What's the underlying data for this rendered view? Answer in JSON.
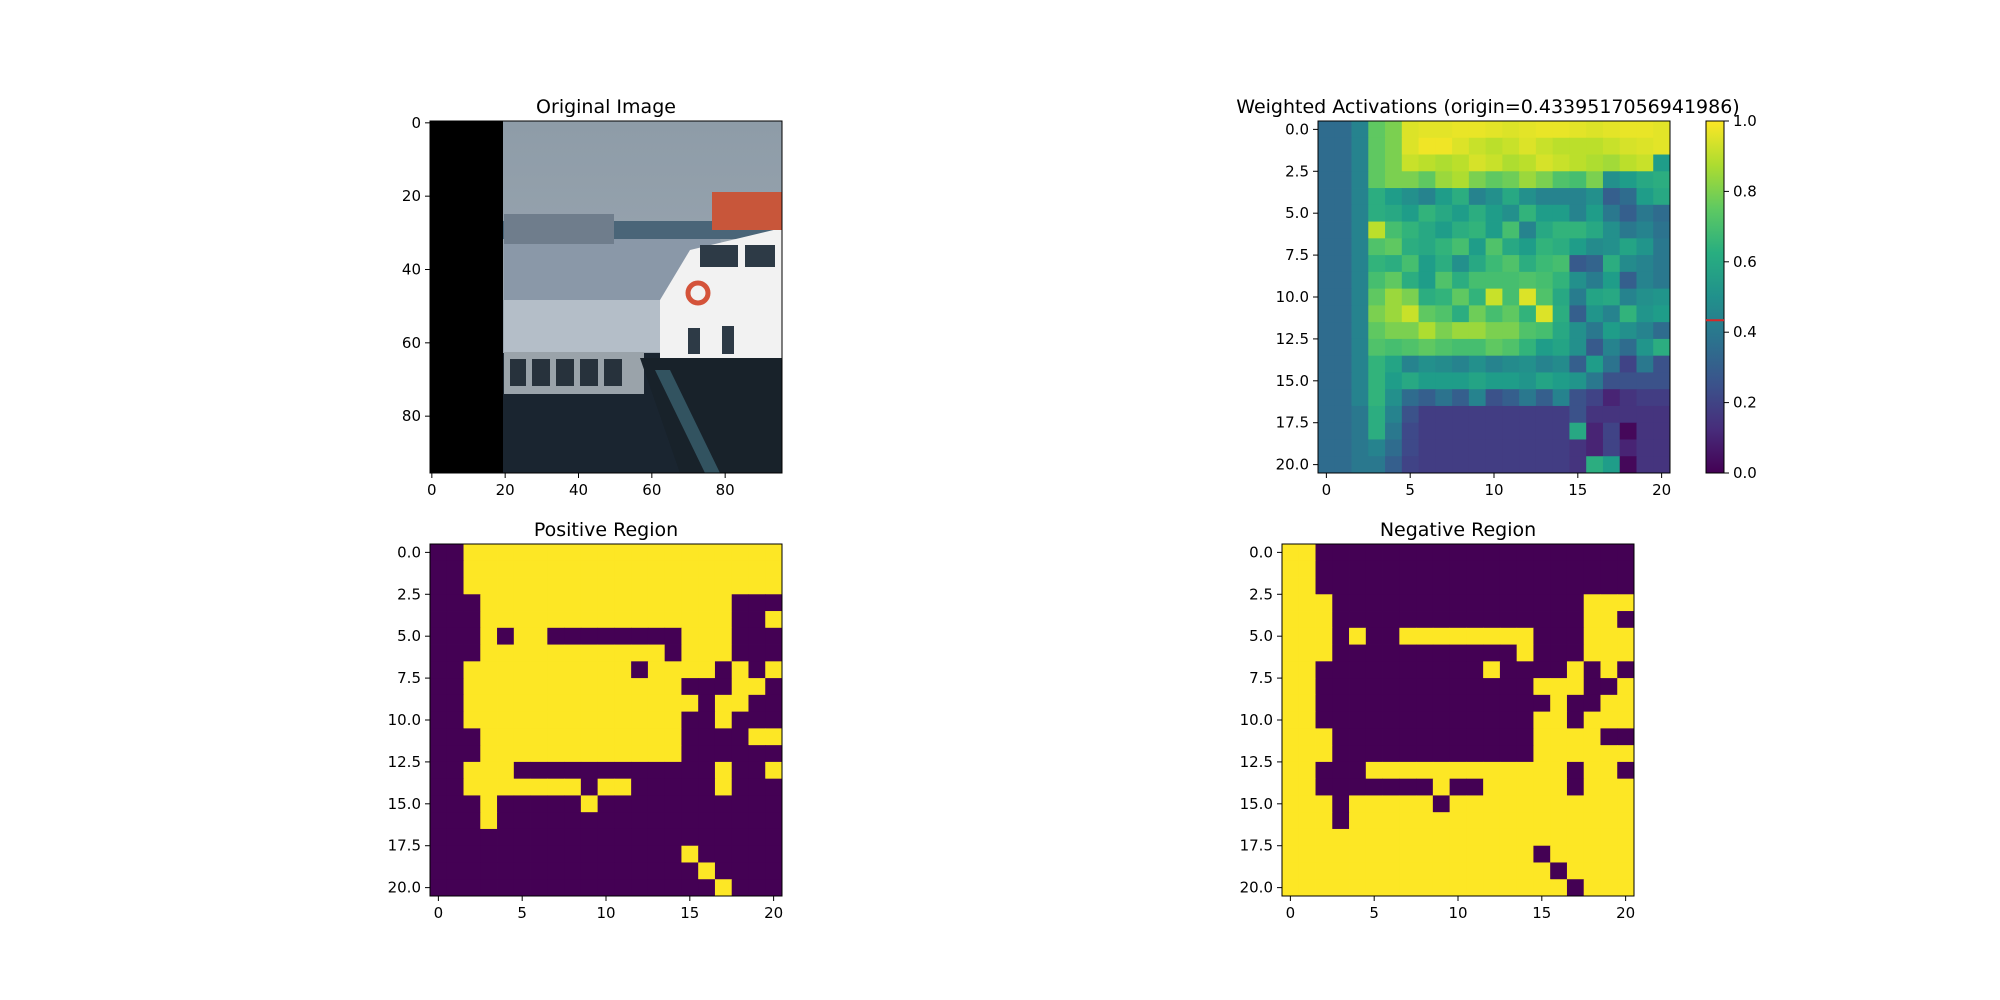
{
  "chart_data": [
    {
      "type": "image",
      "title": "Original Image",
      "xticks": [
        "0",
        "20",
        "40",
        "60",
        "80"
      ],
      "yticks": [
        "0",
        "20",
        "40",
        "60",
        "80"
      ],
      "xlim": [
        -0.5,
        95.5
      ],
      "ylim": [
        95.5,
        -0.5
      ],
      "content": "photograph of boats in a harbor; left ~20 columns masked black"
    },
    {
      "type": "heatmap",
      "title": "Weighted Activations (origin=0.4339517056941986)",
      "colormap": "viridis",
      "xticks": [
        "0",
        "5",
        "10",
        "15",
        "20"
      ],
      "yticks": [
        "0.0",
        "2.5",
        "5.0",
        "7.5",
        "10.0",
        "12.5",
        "15.0",
        "17.5",
        "20.0"
      ],
      "xlim": [
        -0.5,
        20.5
      ],
      "ylim": [
        20.5,
        -0.5
      ],
      "colorbar": {
        "range": [
          0,
          1
        ],
        "ticks": [
          "0.0",
          "0.2",
          "0.4",
          "0.6",
          "0.8",
          "1.0"
        ],
        "marker": 0.434,
        "marker_color": "#d62728"
      },
      "values": [
        [
          0.35,
          0.35,
          0.45,
          0.75,
          0.8,
          0.95,
          0.96,
          0.96,
          0.97,
          0.97,
          0.96,
          0.95,
          0.96,
          0.97,
          0.97,
          0.96,
          0.95,
          0.96,
          0.97,
          0.97,
          0.96
        ],
        [
          0.35,
          0.35,
          0.45,
          0.75,
          0.8,
          0.95,
          0.98,
          0.98,
          0.95,
          0.92,
          0.9,
          0.92,
          0.95,
          0.92,
          0.9,
          0.9,
          0.9,
          0.92,
          0.94,
          0.95,
          0.96
        ],
        [
          0.35,
          0.35,
          0.45,
          0.75,
          0.8,
          0.92,
          0.9,
          0.88,
          0.9,
          0.94,
          0.92,
          0.88,
          0.9,
          0.94,
          0.92,
          0.9,
          0.88,
          0.86,
          0.9,
          0.92,
          0.55
        ],
        [
          0.35,
          0.35,
          0.45,
          0.75,
          0.8,
          0.8,
          0.75,
          0.85,
          0.88,
          0.8,
          0.75,
          0.78,
          0.85,
          0.8,
          0.72,
          0.7,
          0.8,
          0.5,
          0.55,
          0.6,
          0.62
        ],
        [
          0.35,
          0.35,
          0.45,
          0.62,
          0.55,
          0.5,
          0.45,
          0.55,
          0.62,
          0.45,
          0.5,
          0.6,
          0.5,
          0.45,
          0.45,
          0.45,
          0.5,
          0.3,
          0.35,
          0.55,
          0.6
        ],
        [
          0.35,
          0.35,
          0.45,
          0.62,
          0.6,
          0.55,
          0.65,
          0.6,
          0.55,
          0.62,
          0.55,
          0.5,
          0.65,
          0.55,
          0.55,
          0.45,
          0.55,
          0.4,
          0.3,
          0.4,
          0.35
        ],
        [
          0.35,
          0.35,
          0.45,
          0.9,
          0.7,
          0.65,
          0.6,
          0.55,
          0.62,
          0.65,
          0.55,
          0.7,
          0.45,
          0.6,
          0.65,
          0.65,
          0.6,
          0.5,
          0.4,
          0.45,
          0.38
        ],
        [
          0.35,
          0.35,
          0.45,
          0.72,
          0.75,
          0.62,
          0.6,
          0.65,
          0.7,
          0.55,
          0.72,
          0.6,
          0.55,
          0.65,
          0.62,
          0.55,
          0.48,
          0.5,
          0.58,
          0.52,
          0.4
        ],
        [
          0.35,
          0.35,
          0.45,
          0.65,
          0.62,
          0.7,
          0.55,
          0.62,
          0.5,
          0.6,
          0.68,
          0.72,
          0.62,
          0.68,
          0.7,
          0.28,
          0.32,
          0.62,
          0.48,
          0.45,
          0.4
        ],
        [
          0.35,
          0.35,
          0.45,
          0.7,
          0.75,
          0.62,
          0.55,
          0.72,
          0.62,
          0.7,
          0.7,
          0.7,
          0.72,
          0.7,
          0.65,
          0.5,
          0.42,
          0.55,
          0.3,
          0.45,
          0.4
        ],
        [
          0.35,
          0.35,
          0.45,
          0.75,
          0.85,
          0.8,
          0.62,
          0.65,
          0.75,
          0.65,
          0.92,
          0.7,
          0.95,
          0.72,
          0.6,
          0.42,
          0.58,
          0.6,
          0.45,
          0.5,
          0.52
        ],
        [
          0.35,
          0.35,
          0.45,
          0.8,
          0.85,
          0.92,
          0.75,
          0.72,
          0.62,
          0.78,
          0.7,
          0.75,
          0.65,
          0.95,
          0.62,
          0.3,
          0.52,
          0.45,
          0.65,
          0.52,
          0.55
        ],
        [
          0.35,
          0.35,
          0.45,
          0.75,
          0.8,
          0.8,
          0.88,
          0.8,
          0.85,
          0.85,
          0.8,
          0.8,
          0.72,
          0.7,
          0.6,
          0.5,
          0.4,
          0.55,
          0.5,
          0.45,
          0.35
        ],
        [
          0.35,
          0.35,
          0.45,
          0.72,
          0.7,
          0.72,
          0.75,
          0.72,
          0.7,
          0.7,
          0.75,
          0.72,
          0.65,
          0.55,
          0.58,
          0.5,
          0.28,
          0.45,
          0.35,
          0.52,
          0.62
        ],
        [
          0.35,
          0.35,
          0.45,
          0.65,
          0.58,
          0.45,
          0.5,
          0.48,
          0.45,
          0.5,
          0.45,
          0.48,
          0.5,
          0.45,
          0.48,
          0.3,
          0.55,
          0.38,
          0.2,
          0.4,
          0.25
        ],
        [
          0.35,
          0.35,
          0.45,
          0.65,
          0.55,
          0.6,
          0.55,
          0.55,
          0.55,
          0.58,
          0.55,
          0.55,
          0.52,
          0.58,
          0.55,
          0.52,
          0.4,
          0.25,
          0.25,
          0.25,
          0.25
        ],
        [
          0.35,
          0.35,
          0.45,
          0.65,
          0.5,
          0.35,
          0.3,
          0.38,
          0.3,
          0.45,
          0.25,
          0.3,
          0.4,
          0.3,
          0.45,
          0.25,
          0.2,
          0.1,
          0.15,
          0.18,
          0.18
        ],
        [
          0.35,
          0.35,
          0.4,
          0.62,
          0.45,
          0.25,
          0.18,
          0.18,
          0.18,
          0.18,
          0.18,
          0.18,
          0.18,
          0.18,
          0.18,
          0.25,
          0.15,
          0.15,
          0.15,
          0.15,
          0.15
        ],
        [
          0.35,
          0.35,
          0.4,
          0.62,
          0.4,
          0.22,
          0.18,
          0.18,
          0.18,
          0.18,
          0.18,
          0.18,
          0.18,
          0.18,
          0.18,
          0.6,
          0.1,
          0.2,
          0.02,
          0.15,
          0.15
        ],
        [
          0.35,
          0.35,
          0.4,
          0.45,
          0.35,
          0.22,
          0.18,
          0.18,
          0.18,
          0.18,
          0.18,
          0.18,
          0.18,
          0.18,
          0.18,
          0.15,
          0.1,
          0.2,
          0.1,
          0.15,
          0.15
        ],
        [
          0.35,
          0.35,
          0.4,
          0.4,
          0.3,
          0.2,
          0.18,
          0.18,
          0.18,
          0.18,
          0.18,
          0.18,
          0.18,
          0.18,
          0.18,
          0.15,
          0.62,
          0.55,
          0.02,
          0.15,
          0.15
        ]
      ]
    },
    {
      "type": "heatmap",
      "title": "Positive Region",
      "colormap": "viridis-binary",
      "xticks": [
        "0",
        "5",
        "10",
        "15",
        "20"
      ],
      "yticks": [
        "0.0",
        "2.5",
        "5.0",
        "7.5",
        "10.0",
        "12.5",
        "15.0",
        "17.5",
        "20.0"
      ],
      "xlim": [
        -0.5,
        20.5
      ],
      "ylim": [
        20.5,
        -0.5
      ],
      "rows": [
        "001111111111111111111",
        "001111111111111111111",
        "001111111111111111111",
        "000111111111111111000",
        "000111111111111111001",
        "000101100000000111000",
        "000111111111110111000",
        "001111111111011110101",
        "001111111111111000110",
        "001111111111111101100",
        "001111111111111001000",
        "000111111111111000011",
        "000111111111111000000",
        "001110000000000001001",
        "001111111011000001000",
        "000100000100000000000",
        "000100000000000000000",
        "000000000000000000000",
        "000000000000000100000",
        "000000000000000010000",
        "000000000000000001000"
      ]
    },
    {
      "type": "heatmap",
      "title": "Negative Region",
      "colormap": "viridis-binary",
      "xticks": [
        "0",
        "5",
        "10",
        "15",
        "20"
      ],
      "yticks": [
        "0.0",
        "2.5",
        "5.0",
        "7.5",
        "10.0",
        "12.5",
        "15.0",
        "17.5",
        "20.0"
      ],
      "xlim": [
        -0.5,
        20.5
      ],
      "ylim": [
        20.5,
        -0.5
      ],
      "rows": [
        "110000000000000000000",
        "110000000000000000000",
        "110000000000000000000",
        "111000000000000000111",
        "111000000000000000110",
        "111010011111111000111",
        "111000000000001000111",
        "110000000000100001010",
        "110000000000000111001",
        "110000000000000010011",
        "110000000000000110111",
        "111000000000000111100",
        "111000000000000111111",
        "110001111111111110110",
        "110000000100111110111",
        "111011111011111111111",
        "111011111111111111111",
        "111111111111111111111",
        "111111111111111011111",
        "111111111111111101111",
        "111111111111111110111"
      ]
    }
  ]
}
